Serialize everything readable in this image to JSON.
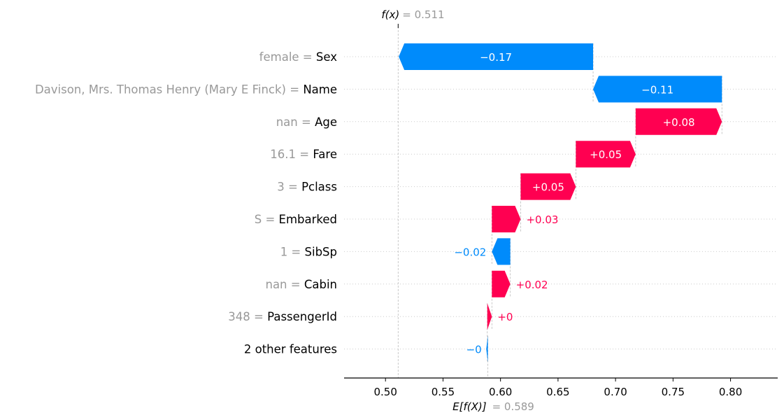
{
  "chart_data": {
    "type": "waterfall",
    "base_value": 0.589,
    "base_label": "E[f(X)]",
    "base_value_text": "= 0.589",
    "output_value": 0.511,
    "output_label": "f(x)",
    "output_value_text": "= 0.511",
    "xlim": [
      0.464,
      0.841
    ],
    "xticks": [
      0.5,
      0.55,
      0.6,
      0.65,
      0.7,
      0.75,
      0.8
    ],
    "xtick_labels": [
      "0.50",
      "0.55",
      "0.60",
      "0.65",
      "0.70",
      "0.75",
      "0.80"
    ],
    "colors": {
      "positive": "#ff0051",
      "negative": "#008bfb",
      "feature_value": "#999999"
    },
    "features": [
      {
        "value": "female",
        "name": "Sex",
        "shap": -0.169,
        "label": "−0.17"
      },
      {
        "value": "Davison, Mrs. Thomas Henry (Mary E Finck)",
        "name": "Name",
        "shap": -0.112,
        "label": "−0.11"
      },
      {
        "value": "nan",
        "name": "Age",
        "shap": 0.075,
        "label": "+0.08"
      },
      {
        "value": "16.1",
        "name": "Fare",
        "shap": 0.052,
        "label": "+0.05"
      },
      {
        "value": "3",
        "name": "Pclass",
        "shap": 0.048,
        "label": "+0.05"
      },
      {
        "value": "S",
        "name": "Embarked",
        "shap": 0.025,
        "label": "+0.03"
      },
      {
        "value": "1",
        "name": "SibSp",
        "shap": -0.016,
        "label": "−0.02"
      },
      {
        "value": "nan",
        "name": "Cabin",
        "shap": 0.016,
        "label": "+0.02"
      },
      {
        "value": "348",
        "name": "PassengerId",
        "shap": 0.004,
        "label": "+0"
      },
      {
        "value": "",
        "name": "2 other features",
        "shap": -0.0005,
        "label": "−0"
      }
    ]
  }
}
